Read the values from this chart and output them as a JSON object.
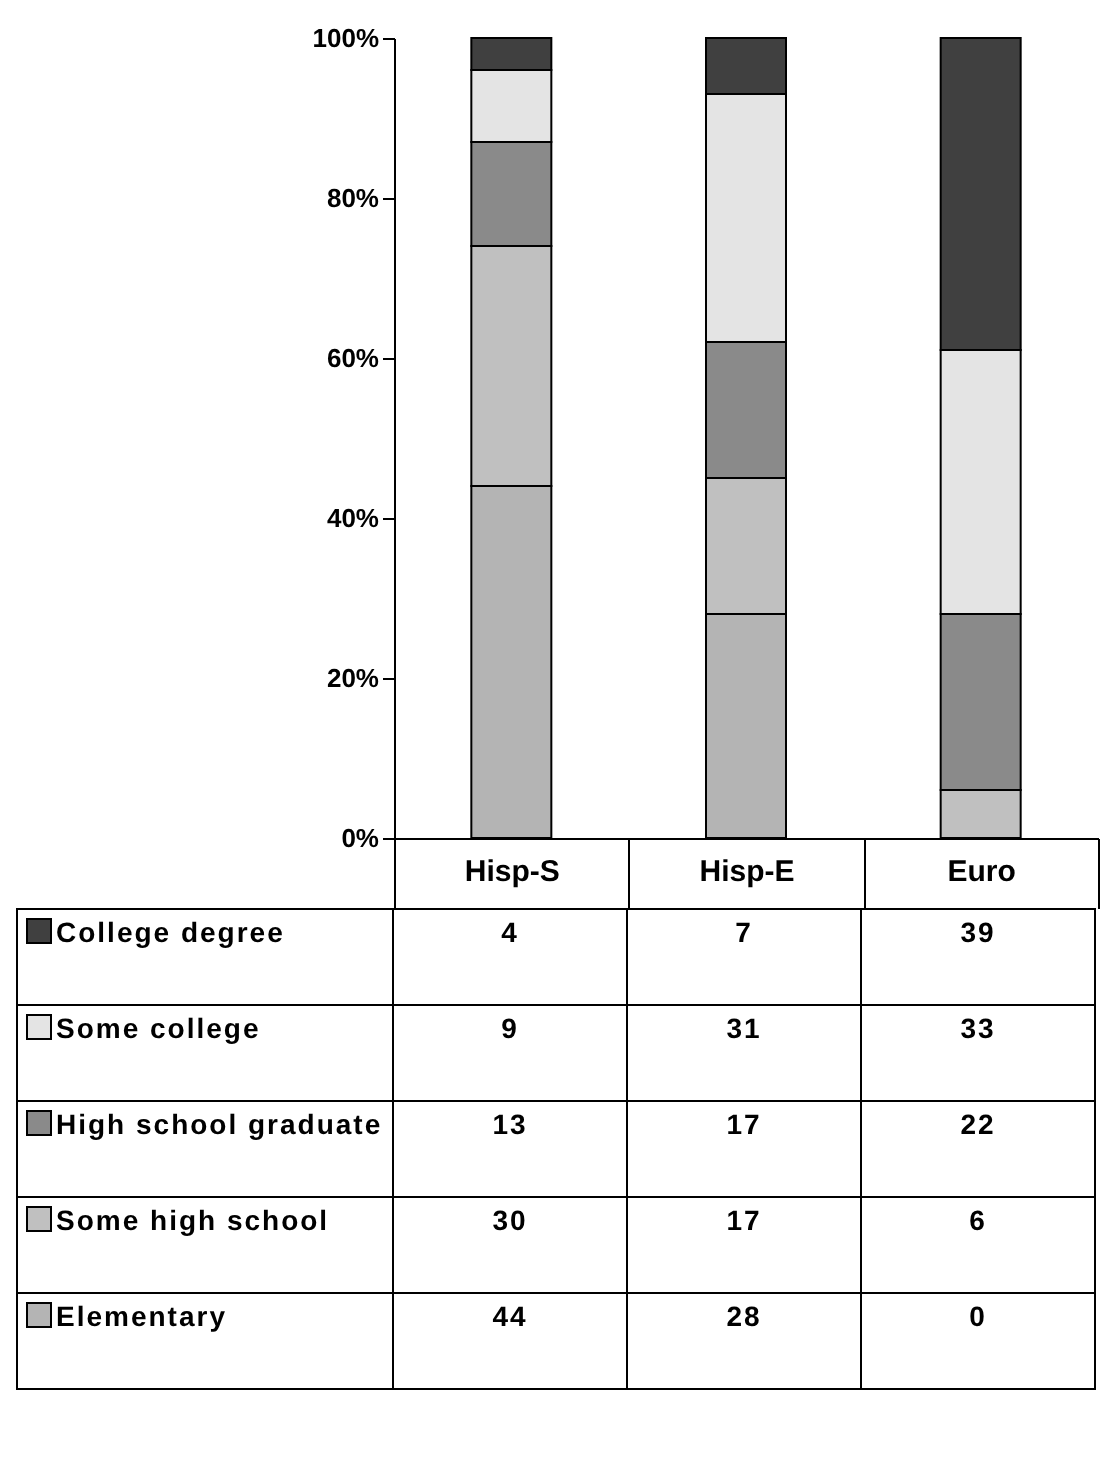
{
  "chart_data": {
    "type": "bar",
    "stacked": true,
    "data_labels": true,
    "legend": "bottom",
    "categories": [
      "Hisp-S",
      "Hisp-E",
      "Euro"
    ],
    "series": [
      {
        "name": "Elementary",
        "color": "#b4b4b4",
        "values": [
          44,
          28,
          0
        ]
      },
      {
        "name": "Some high school",
        "color": "#c0c0c0",
        "values": [
          30,
          17,
          6
        ]
      },
      {
        "name": "High school graduate",
        "color": "#8a8a8a",
        "values": [
          13,
          17,
          22
        ]
      },
      {
        "name": "Some college",
        "color": "#e4e4e4",
        "values": [
          9,
          31,
          33
        ]
      },
      {
        "name": "College degree",
        "color": "#404040",
        "values": [
          4,
          7,
          39
        ]
      }
    ],
    "ylim": [
      0,
      100
    ],
    "yticks": [
      {
        "value": 0,
        "label": "0%"
      },
      {
        "value": 20,
        "label": "20%"
      },
      {
        "value": 40,
        "label": "40%"
      },
      {
        "value": 60,
        "label": "60%"
      },
      {
        "value": 80,
        "label": "80%"
      },
      {
        "value": 100,
        "label": "100%"
      }
    ]
  }
}
